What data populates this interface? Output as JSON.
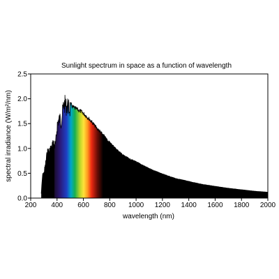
{
  "chart_data": {
    "type": "area",
    "title": "Sunlight spectrum in space as a function of wavelength",
    "xlabel": "wavelength (nm)",
    "ylabel": "spectral irradiance (W/m²/nm)",
    "xlim": [
      200,
      2000
    ],
    "ylim": [
      0,
      2.5
    ],
    "xticks": [
      "200",
      "400",
      "600",
      "800",
      "1000",
      "1200",
      "1400",
      "1600",
      "1800",
      "2000"
    ],
    "yticks": [
      "0.0",
      "0.5",
      "1.0",
      "1.5",
      "2.0",
      "2.5"
    ],
    "grid": false,
    "fill_color": "#000000",
    "visible_band": [
      380,
      750
    ],
    "series": [
      {
        "x": [
          280,
          290,
          300,
          310,
          320,
          330,
          340,
          350,
          360,
          370,
          380,
          390,
          400,
          410,
          420,
          430,
          440,
          450,
          460,
          470,
          480,
          490,
          500,
          520,
          540,
          560,
          580,
          600,
          650,
          700,
          750,
          800,
          850,
          900,
          950,
          1000,
          1100,
          1200,
          1300,
          1400,
          1500,
          1600,
          1700,
          1800,
          1900,
          2000
        ],
        "values": [
          0.1,
          0.5,
          0.55,
          0.7,
          0.9,
          1.05,
          1.0,
          1.1,
          1.08,
          1.25,
          1.15,
          1.2,
          1.6,
          1.72,
          1.75,
          1.7,
          1.85,
          2.05,
          2.08,
          2.02,
          2.05,
          1.98,
          1.95,
          1.88,
          1.85,
          1.82,
          1.79,
          1.75,
          1.62,
          1.45,
          1.3,
          1.14,
          1.0,
          0.88,
          0.8,
          0.74,
          0.6,
          0.49,
          0.4,
          0.34,
          0.28,
          0.24,
          0.2,
          0.17,
          0.14,
          0.12
        ]
      }
    ]
  }
}
